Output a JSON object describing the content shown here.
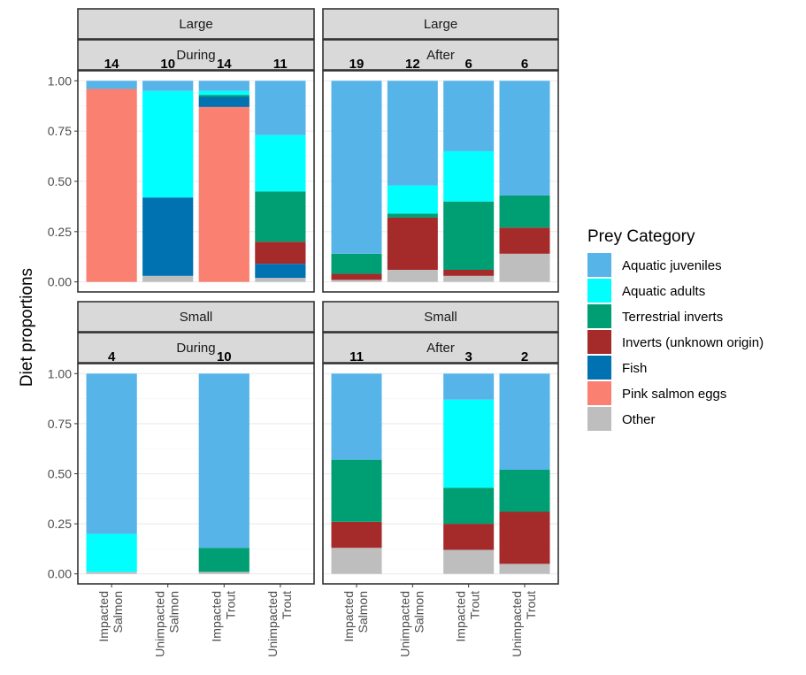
{
  "chart_data": {
    "type": "bar",
    "stacked": true,
    "ylabel": "Diet proportions",
    "ylim": [
      0,
      1
    ],
    "yticks": [
      "0.00",
      "0.25",
      "0.50",
      "0.75",
      "1.00"
    ],
    "categories": [
      [
        "Impacted",
        "Salmon"
      ],
      [
        "Unimpacted",
        "Salmon"
      ],
      [
        "Impacted",
        "Trout"
      ],
      [
        "Unimpacted",
        "Trout"
      ]
    ],
    "legend": {
      "title": "Prey Category",
      "position": "right",
      "entries": [
        {
          "name": "Aquatic juveniles",
          "color": "#56b4e9"
        },
        {
          "name": "Aquatic adults",
          "color": "#00ffff"
        },
        {
          "name": "Terrestrial inverts",
          "color": "#009e73"
        },
        {
          "name": "Inverts (unknown origin)",
          "color": "#a52a2a"
        },
        {
          "name": "Fish",
          "color": "#0072b2"
        },
        {
          "name": "Pink salmon eggs",
          "color": "#fa8072"
        },
        {
          "name": "Other",
          "color": "#bebebe"
        }
      ]
    },
    "stack_order_bottom_to_top": [
      "Other",
      "Pink salmon eggs",
      "Fish",
      "Inverts (unknown origin)",
      "Terrestrial inverts",
      "Aquatic adults",
      "Aquatic juveniles"
    ],
    "panels": [
      {
        "size": "Large",
        "period": "During",
        "counts": [
          "14",
          "10",
          "14",
          "11"
        ],
        "bars": [
          {
            "Other": 0.0,
            "Pink salmon eggs": 0.96,
            "Fish": 0.0,
            "Inverts (unknown origin)": 0.0,
            "Terrestrial inverts": 0.0,
            "Aquatic adults": 0.0,
            "Aquatic juveniles": 0.04
          },
          {
            "Other": 0.03,
            "Pink salmon eggs": 0.0,
            "Fish": 0.39,
            "Inverts (unknown origin)": 0.0,
            "Terrestrial inverts": 0.0,
            "Aquatic adults": 0.53,
            "Aquatic juveniles": 0.05
          },
          {
            "Other": 0.0,
            "Pink salmon eggs": 0.87,
            "Fish": 0.05,
            "Inverts (unknown origin)": 0.0,
            "Terrestrial inverts": 0.01,
            "Aquatic adults": 0.02,
            "Aquatic juveniles": 0.05
          },
          {
            "Other": 0.02,
            "Pink salmon eggs": 0.0,
            "Fish": 0.07,
            "Inverts (unknown origin)": 0.11,
            "Terrestrial inverts": 0.25,
            "Aquatic adults": 0.28,
            "Aquatic juveniles": 0.27
          }
        ]
      },
      {
        "size": "Large",
        "period": "After",
        "counts": [
          "19",
          "12",
          "6",
          "6"
        ],
        "bars": [
          {
            "Other": 0.01,
            "Pink salmon eggs": 0.0,
            "Fish": 0.0,
            "Inverts (unknown origin)": 0.03,
            "Terrestrial inverts": 0.1,
            "Aquatic adults": 0.0,
            "Aquatic juveniles": 0.86
          },
          {
            "Other": 0.06,
            "Pink salmon eggs": 0.0,
            "Fish": 0.0,
            "Inverts (unknown origin)": 0.26,
            "Terrestrial inverts": 0.02,
            "Aquatic adults": 0.14,
            "Aquatic juveniles": 0.52
          },
          {
            "Other": 0.03,
            "Pink salmon eggs": 0.0,
            "Fish": 0.0,
            "Inverts (unknown origin)": 0.03,
            "Terrestrial inverts": 0.34,
            "Aquatic adults": 0.25,
            "Aquatic juveniles": 0.35
          },
          {
            "Other": 0.14,
            "Pink salmon eggs": 0.0,
            "Fish": 0.0,
            "Inverts (unknown origin)": 0.13,
            "Terrestrial inverts": 0.16,
            "Aquatic adults": 0.0,
            "Aquatic juveniles": 0.57
          }
        ]
      },
      {
        "size": "Small",
        "period": "During",
        "counts": [
          "4",
          "",
          "10",
          ""
        ],
        "bars": [
          {
            "Other": 0.01,
            "Pink salmon eggs": 0.0,
            "Fish": 0.0,
            "Inverts (unknown origin)": 0.0,
            "Terrestrial inverts": 0.0,
            "Aquatic adults": 0.19,
            "Aquatic juveniles": 0.8
          },
          null,
          {
            "Other": 0.01,
            "Pink salmon eggs": 0.0,
            "Fish": 0.0,
            "Inverts (unknown origin)": 0.0,
            "Terrestrial inverts": 0.12,
            "Aquatic adults": 0.0,
            "Aquatic juveniles": 0.87
          },
          null
        ]
      },
      {
        "size": "Small",
        "period": "After",
        "counts": [
          "11",
          "",
          "3",
          "2"
        ],
        "bars": [
          {
            "Other": 0.13,
            "Pink salmon eggs": 0.0,
            "Fish": 0.0,
            "Inverts (unknown origin)": 0.13,
            "Terrestrial inverts": 0.31,
            "Aquatic adults": 0.0,
            "Aquatic juveniles": 0.43
          },
          null,
          {
            "Other": 0.12,
            "Pink salmon eggs": 0.0,
            "Fish": 0.0,
            "Inverts (unknown origin)": 0.13,
            "Terrestrial inverts": 0.18,
            "Aquatic adults": 0.44,
            "Aquatic juveniles": 0.13
          },
          {
            "Other": 0.05,
            "Pink salmon eggs": 0.0,
            "Fish": 0.0,
            "Inverts (unknown origin)": 0.26,
            "Terrestrial inverts": 0.21,
            "Aquatic adults": 0.0,
            "Aquatic juveniles": 0.48
          }
        ]
      }
    ]
  }
}
